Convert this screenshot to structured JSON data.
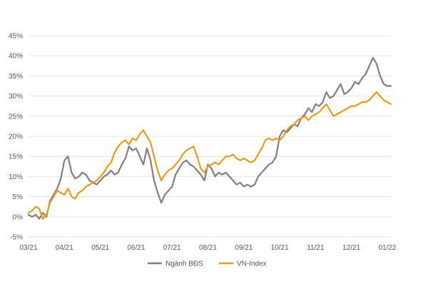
{
  "chart_data": {
    "type": "line",
    "title": "",
    "xlabel": "",
    "ylabel": "",
    "ylim": [
      -5,
      45
    ],
    "y_ticks": [
      -5,
      0,
      5,
      10,
      15,
      20,
      25,
      30,
      35,
      40,
      45
    ],
    "y_tick_labels": [
      "-5%",
      "0%",
      "5%",
      "10%",
      "15%",
      "20%",
      "25%",
      "30%",
      "35%",
      "40%",
      "45%"
    ],
    "x_ticks": [
      0,
      1,
      2,
      3,
      4,
      5,
      6,
      7,
      8,
      9,
      10
    ],
    "x_tick_labels": [
      "03/21",
      "04/21",
      "05/21",
      "06/21",
      "07/21",
      "08/21",
      "09/21",
      "10/21",
      "11/21",
      "12/21",
      "01/22"
    ],
    "grid": true,
    "legend_position": "bottom",
    "series": [
      {
        "name": "Ngành BĐS",
        "color": "#7f7f7f",
        "x": [
          0,
          0.1,
          0.2,
          0.3,
          0.4,
          0.5,
          0.6,
          0.7,
          0.8,
          0.9,
          1.0,
          1.1,
          1.2,
          1.3,
          1.4,
          1.5,
          1.6,
          1.7,
          1.8,
          1.9,
          2.0,
          2.1,
          2.2,
          2.3,
          2.4,
          2.5,
          2.6,
          2.7,
          2.8,
          2.9,
          3.0,
          3.1,
          3.2,
          3.3,
          3.4,
          3.5,
          3.6,
          3.7,
          3.8,
          3.9,
          4.0,
          4.1,
          4.2,
          4.3,
          4.4,
          4.5,
          4.6,
          4.7,
          4.8,
          4.9,
          5.0,
          5.1,
          5.2,
          5.3,
          5.4,
          5.5,
          5.6,
          5.7,
          5.8,
          5.9,
          6.0,
          6.1,
          6.2,
          6.3,
          6.4,
          6.5,
          6.6,
          6.7,
          6.8,
          6.9,
          7.0,
          7.1,
          7.2,
          7.3,
          7.4,
          7.5,
          7.6,
          7.7,
          7.8,
          7.9,
          8.0,
          8.1,
          8.2,
          8.3,
          8.4,
          8.5,
          8.6,
          8.7,
          8.8,
          8.9,
          9.0,
          9.1,
          9.2,
          9.3,
          9.4,
          9.5,
          9.6,
          9.7,
          9.8,
          9.9,
          10.0,
          10.1
        ],
        "values": [
          0.5,
          0.0,
          0.5,
          -0.5,
          1.0,
          0.0,
          4.0,
          5.5,
          7.0,
          9.5,
          14.0,
          15.0,
          11.0,
          9.5,
          10.0,
          11.0,
          10.5,
          9.0,
          8.5,
          8.0,
          9.0,
          10.0,
          10.5,
          11.5,
          10.5,
          11.0,
          13.0,
          14.5,
          17.5,
          16.5,
          17.0,
          15.0,
          13.0,
          17.0,
          14.0,
          9.0,
          6.0,
          3.5,
          5.5,
          6.5,
          7.5,
          10.5,
          12.0,
          13.5,
          14.0,
          13.0,
          12.5,
          11.5,
          10.5,
          9.0,
          13.0,
          12.0,
          10.0,
          11.0,
          10.5,
          11.0,
          10.0,
          9.0,
          8.0,
          8.5,
          7.5,
          8.0,
          7.5,
          8.0,
          10.0,
          11.0,
          12.0,
          13.0,
          13.5,
          15.0,
          20.0,
          21.5,
          21.0,
          22.0,
          23.0,
          22.5,
          24.5,
          25.5,
          27.0,
          26.0,
          28.0,
          27.5,
          28.5,
          31.0,
          29.5,
          30.0,
          31.5,
          33.0,
          30.5,
          31.0,
          32.0,
          33.5,
          33.0,
          34.5,
          35.5,
          37.5,
          39.5,
          38.0,
          35.0,
          33.0,
          32.5,
          32.5
        ]
      },
      {
        "name": "VN-Index",
        "color": "#e69a1e",
        "x": [
          0,
          0.1,
          0.2,
          0.3,
          0.4,
          0.5,
          0.6,
          0.7,
          0.8,
          0.9,
          1.0,
          1.1,
          1.2,
          1.3,
          1.4,
          1.5,
          1.6,
          1.7,
          1.8,
          1.9,
          2.0,
          2.1,
          2.2,
          2.3,
          2.4,
          2.5,
          2.6,
          2.7,
          2.8,
          2.9,
          3.0,
          3.1,
          3.2,
          3.3,
          3.4,
          3.5,
          3.6,
          3.7,
          3.8,
          3.9,
          4.0,
          4.1,
          4.2,
          4.3,
          4.4,
          4.5,
          4.6,
          4.7,
          4.8,
          4.9,
          5.0,
          5.1,
          5.2,
          5.3,
          5.4,
          5.5,
          5.6,
          5.7,
          5.8,
          5.9,
          6.0,
          6.1,
          6.2,
          6.3,
          6.4,
          6.5,
          6.6,
          6.7,
          6.8,
          6.9,
          7.0,
          7.1,
          7.2,
          7.3,
          7.4,
          7.5,
          7.6,
          7.7,
          7.8,
          7.9,
          8.0,
          8.1,
          8.2,
          8.3,
          8.4,
          8.5,
          8.6,
          8.7,
          8.8,
          8.9,
          9.0,
          9.1,
          9.2,
          9.3,
          9.4,
          9.5,
          9.6,
          9.7,
          9.8,
          9.9,
          10.0,
          10.1
        ],
        "values": [
          1.0,
          1.5,
          2.5,
          2.0,
          -0.5,
          0.5,
          3.5,
          5.0,
          6.5,
          6.0,
          5.5,
          7.0,
          5.0,
          4.5,
          6.0,
          6.5,
          7.5,
          8.0,
          8.5,
          9.0,
          10.0,
          11.0,
          12.5,
          13.5,
          16.0,
          17.5,
          18.5,
          19.0,
          18.0,
          19.5,
          19.0,
          20.5,
          21.5,
          20.0,
          18.5,
          15.0,
          11.5,
          9.0,
          10.5,
          11.5,
          12.0,
          13.0,
          14.0,
          15.5,
          16.5,
          17.0,
          17.5,
          15.0,
          12.0,
          11.0,
          12.5,
          13.0,
          13.5,
          13.0,
          14.0,
          15.0,
          15.0,
          15.5,
          14.5,
          14.0,
          14.5,
          14.0,
          13.5,
          14.0,
          15.5,
          17.0,
          19.0,
          19.5,
          19.0,
          19.5,
          19.0,
          20.0,
          21.5,
          22.5,
          23.0,
          24.0,
          24.5,
          25.0,
          24.0,
          25.0,
          25.5,
          26.0,
          27.0,
          28.0,
          26.5,
          25.0,
          25.5,
          26.0,
          26.5,
          27.0,
          27.5,
          27.5,
          28.0,
          28.5,
          28.5,
          29.0,
          30.0,
          31.0,
          30.0,
          29.0,
          28.5,
          28.0
        ]
      }
    ]
  }
}
